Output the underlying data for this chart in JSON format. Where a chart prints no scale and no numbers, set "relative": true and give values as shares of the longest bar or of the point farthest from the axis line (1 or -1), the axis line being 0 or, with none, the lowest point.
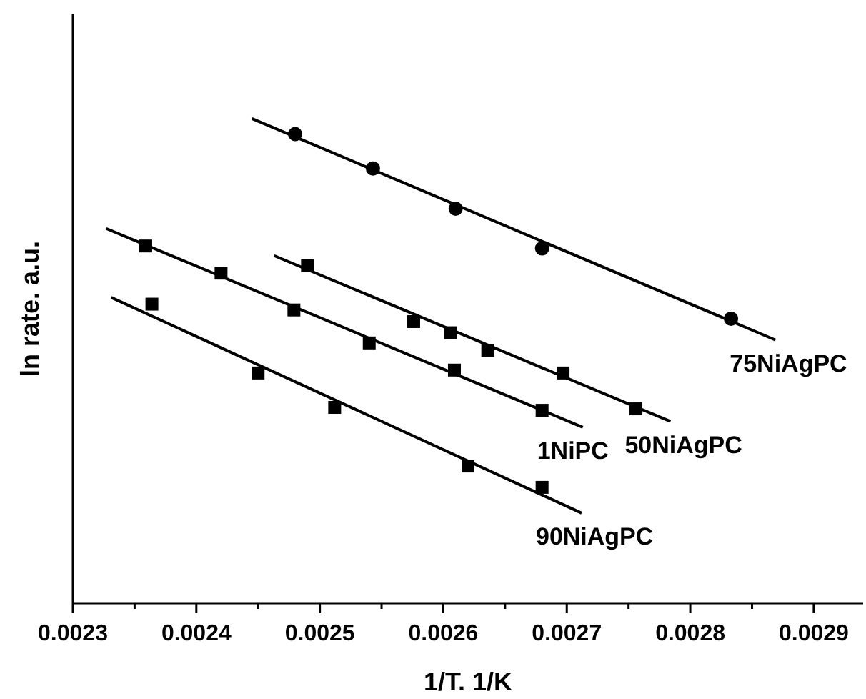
{
  "chart_data": {
    "type": "scatter",
    "xlabel": "1/T. 1/K",
    "ylabel": "ln rate. a.u.",
    "relative": true,
    "grid": false,
    "xlim": [
      0.0023,
      0.00294
    ],
    "xticks": [
      0.0023,
      {
        "value": 0.00235,
        "label": null
      },
      0.0024,
      {
        "value": 0.00245,
        "label": null
      },
      0.0025,
      {
        "value": 0.00255,
        "label": null
      },
      0.0026,
      {
        "value": 0.00265,
        "label": null
      },
      0.0027,
      {
        "value": 0.00275,
        "label": null
      },
      0.0028,
      {
        "value": 0.00285,
        "label": null
      },
      0.0029
    ],
    "series": [
      {
        "marker": "circle",
        "color": "#000000",
        "x": [
          0.00248,
          0.002543,
          0.00261,
          0.00268,
          0.002833
        ],
        "values": [
          0.968,
          0.897,
          0.814,
          0.732,
          0.587
        ]
      },
      {
        "type": "line",
        "marker": "none",
        "name": "75NiAgPC",
        "color": "#000000",
        "x": [
          0.002445,
          0.002869
        ],
        "values": [
          1.0,
          0.543
        ]
      },
      {
        "marker": "square",
        "color": "#000000",
        "x": [
          0.00249,
          0.002576,
          0.002606,
          0.002636,
          0.002697,
          0.002756
        ],
        "values": [
          0.696,
          0.581,
          0.558,
          0.522,
          0.475,
          0.401
        ]
      },
      {
        "type": "line",
        "marker": "none",
        "name": "50NiAgPC",
        "color": "#000000",
        "x": [
          0.002463,
          0.002784
        ],
        "values": [
          0.717,
          0.375
        ]
      },
      {
        "marker": "square",
        "color": "#000000",
        "x": [
          0.002359,
          0.00242,
          0.002479,
          0.00254,
          0.002609,
          0.00268
        ],
        "values": [
          0.737,
          0.681,
          0.605,
          0.537,
          0.481,
          0.398
        ]
      },
      {
        "type": "line",
        "marker": "none",
        "name": "1NiPC",
        "color": "#000000",
        "x": [
          0.002327,
          0.002713
        ],
        "values": [
          0.773,
          0.363
        ]
      },
      {
        "marker": "square",
        "color": "#000000",
        "x": [
          0.002364,
          0.00245,
          0.002512,
          0.00262,
          0.00268
        ],
        "values": [
          0.617,
          0.475,
          0.404,
          0.283,
          0.239
        ]
      },
      {
        "type": "line",
        "marker": "none",
        "name": "90NiAgPC",
        "color": "#000000",
        "x": [
          0.002331,
          0.002712
        ],
        "values": [
          0.631,
          0.186
        ]
      }
    ]
  }
}
